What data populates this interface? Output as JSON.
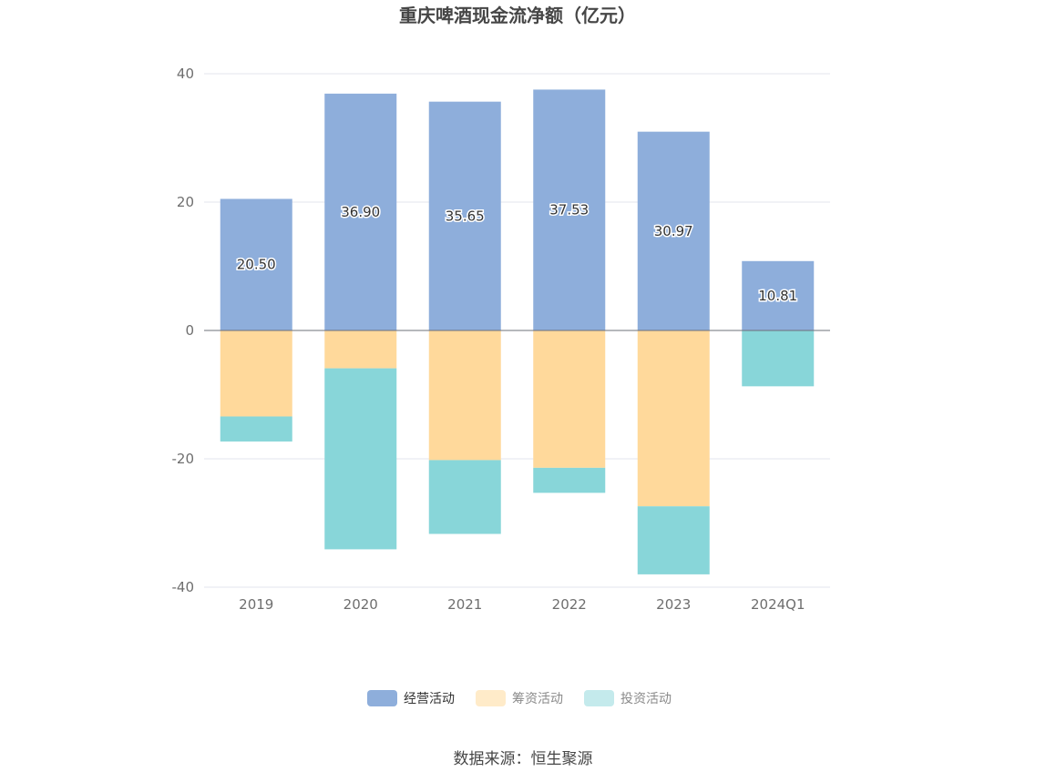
{
  "chart_data": {
    "type": "bar",
    "stacked": true,
    "title": "重庆啤酒现金流净额（亿元）",
    "categories": [
      "2019",
      "2020",
      "2021",
      "2022",
      "2023",
      "2024Q1"
    ],
    "ylim": [
      -40,
      40
    ],
    "yticks": [
      40,
      20,
      0,
      -20,
      -40
    ],
    "grid": true,
    "legend_position": "bottom",
    "series": [
      {
        "name": "经营活动",
        "color": "#8eaedb",
        "values": [
          20.5,
          36.9,
          35.65,
          37.53,
          30.97,
          10.81
        ],
        "labels": [
          "20.50",
          "36.90",
          "35.65",
          "37.53",
          "30.97",
          "10.81"
        ]
      },
      {
        "name": "筹资活动",
        "color": "#ffd99b",
        "values": [
          -13.4,
          -5.9,
          -20.2,
          -21.4,
          -27.4,
          0
        ]
      },
      {
        "name": "投资活动",
        "color": "#88d6d9",
        "values": [
          -3.9,
          -28.2,
          -11.5,
          -3.9,
          -10.6,
          -8.7
        ]
      }
    ],
    "legend_colors": [
      "#8eaedb",
      "#ffebc9",
      "#c4eaec"
    ]
  },
  "source": "数据来源：恒生聚源"
}
